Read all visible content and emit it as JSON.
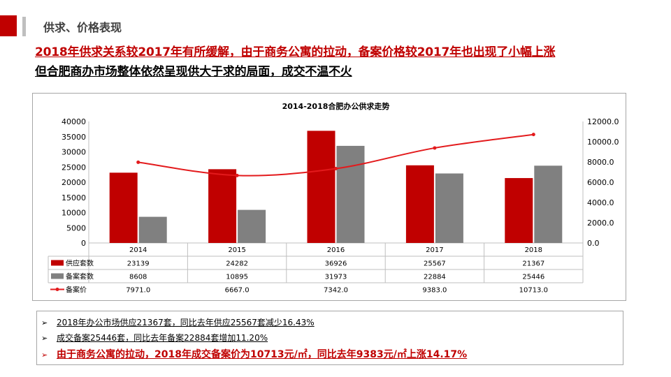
{
  "header": {
    "section_title": "供求、价格表现",
    "headline_line1": "2018年供求关系较2017年有所缓解，由于商务公寓的拉动，备案价格较2017年也出现了小幅上涨",
    "headline_line2": "但合肥商办市场整体依然呈现供大于求的局面，成交不温不火"
  },
  "colors": {
    "accent": "#c00000",
    "supply_bar": "#c00000",
    "filed_bar": "#808080",
    "price_line": "#e31a1c",
    "divider_gray": "#bfbfbf"
  },
  "chart_data": {
    "type": "bar",
    "title": "2014-2018合肥办公供求走势",
    "categories": [
      "2014",
      "2015",
      "2016",
      "2017",
      "2018"
    ],
    "series": [
      {
        "name": "供应套数",
        "type": "bar",
        "axis": "left",
        "color": "#c00000",
        "values": [
          23139,
          24282,
          36926,
          25567,
          21367
        ],
        "labels": [
          "23139",
          "24282",
          "36926",
          "25567",
          "21367"
        ]
      },
      {
        "name": "备案套数",
        "type": "bar",
        "axis": "left",
        "color": "#808080",
        "values": [
          8608,
          10895,
          31973,
          22884,
          25446
        ],
        "labels": [
          "8608",
          "10895",
          "31973",
          "22884",
          "25446"
        ]
      },
      {
        "name": "备案价",
        "type": "line",
        "axis": "right",
        "color": "#e31a1c",
        "values": [
          7971.0,
          6667.0,
          7342.0,
          9383.0,
          10713.0
        ],
        "labels": [
          "7971.0",
          "6667.0",
          "7342.0",
          "9383.0",
          "10713.0"
        ]
      }
    ],
    "y_left": {
      "lim": [
        0,
        40000
      ],
      "ticks": [
        "0",
        "5000",
        "10000",
        "15000",
        "20000",
        "25000",
        "30000",
        "35000",
        "40000"
      ]
    },
    "y_right": {
      "lim": [
        0,
        12000
      ],
      "ticks": [
        "0.0",
        "2000.0",
        "4000.0",
        "6000.0",
        "8000.0",
        "10000.0",
        "12000.0"
      ]
    },
    "grid": false,
    "legend": "data-table"
  },
  "notes": [
    "2018年办公市场供应21367套，同比去年供应25567套减少16.43%",
    "成交备案25446套，同比去年备案22884套增加11.20%",
    "由于商务公寓的拉动，2018年成交备案价为10713元/㎡，同比去年9383元/㎡上涨14.17%"
  ],
  "note_bullet": "➢"
}
